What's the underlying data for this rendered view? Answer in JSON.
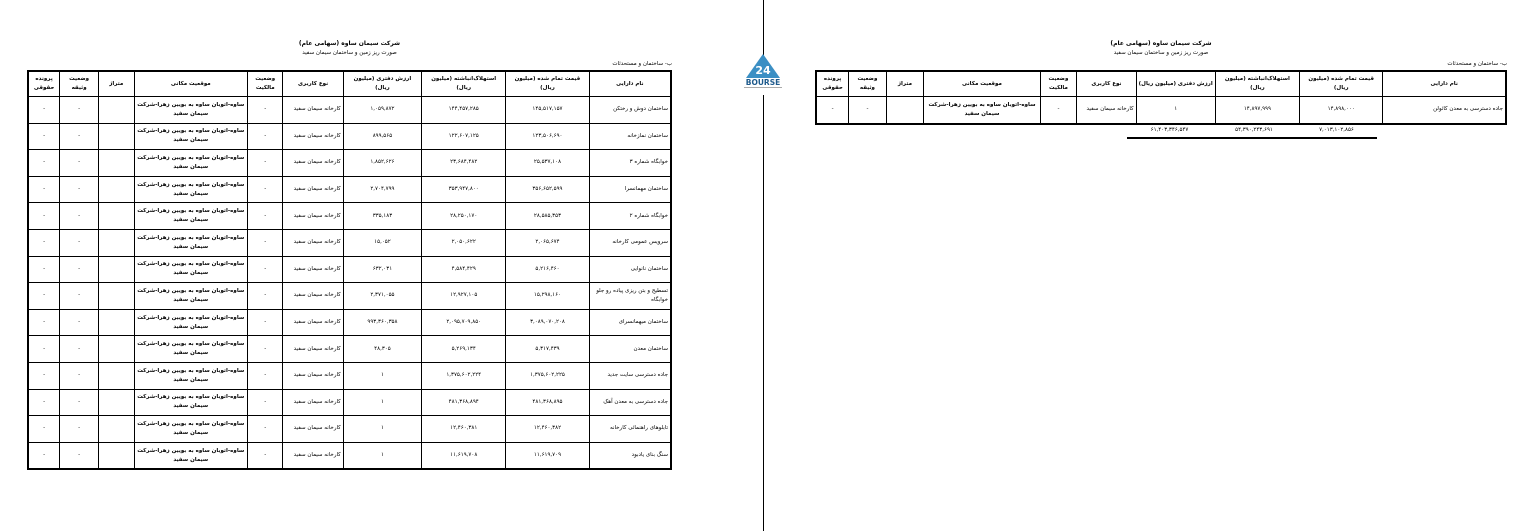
{
  "company": "شرکت سیمان ساوه (سهامی عام)",
  "subtitle": "صورت ریز زمین و ساختمان سیمان سفید",
  "section": "ب- ساختمان و مستحدثات",
  "logo_text": "BOURSE 24",
  "headers": [
    "نام دارایی",
    "قیمت تمام شده (میلیون ریال)",
    "استهلاک‌انباشته (میلیون ریال)",
    "ارزش دفتری (میلیون ریال)",
    "نوع کاربری",
    "وضعیت مالکیت",
    "موقعیت مکانی",
    "متراژ",
    "وضعیت وثیقه",
    "پرونده حقوقی"
  ],
  "left": {
    "rows": [
      {
        "name": "ساختمان دوش و رختکن",
        "cost": "۱۴۵,۵۱۷,۱۵۷",
        "dep": "۱۴۴,۴۵۷,۲۸۵",
        "book": "۱,۰۵۹,۸۷۲"
      },
      {
        "name": "ساختمان نمازخانه",
        "cost": "۱۲۳,۵۰۶,۶۹۰",
        "dep": "۱۲۲,۶۰۷,۱۲۵",
        "book": "۸۹۹,۵۶۵"
      },
      {
        "name": "خوابگاه شماره ۳",
        "cost": "۲۵,۵۳۷,۱۰۸",
        "dep": "۲۳,۶۸۴,۴۸۲",
        "book": "۱,۸۵۲,۶۲۶"
      },
      {
        "name": "ساختمان مهمانسرا",
        "cost": "۳۵۶,۶۵۲,۵۹۹",
        "dep": "۳۵۳,۹۴۷,۸۰۰",
        "book": "۲,۷۰۴,۷۹۹"
      },
      {
        "name": "خوابگاه شماره ۲",
        "cost": "۲۸,۵۸۵,۳۵۳",
        "dep": "۲۸,۲۵۰,۱۷۰",
        "book": "۳۳۵,۱۸۳"
      },
      {
        "name": "سرویس عمومی کارخانه",
        "cost": "۲,۰۶۵,۶۷۴",
        "dep": "۲,۰۵۰,۶۲۲",
        "book": "۱۵,۰۵۲"
      },
      {
        "name": "ساختمان نانوایی",
        "cost": "۵,۲۱۶,۴۶۰",
        "dep": "۴,۵۸۴,۴۲۹",
        "book": "۶۳۲,۰۳۱"
      },
      {
        "name": "تسطیح و بتن ریزی پیاده رو جلو خوابگاه",
        "cost": "۱۵,۲۹۸,۱۶۰",
        "dep": "۱۲,۹۲۷,۱۰۵",
        "book": "۲,۳۷۱,۰۵۵"
      },
      {
        "name": "ساختمان میهمانسرای",
        "cost": "۳,۰۸۹,۰۷۰,۲۰۸",
        "dep": "۲,۰۹۵,۷۰۹,۸۵۰",
        "book": "۹۹۳,۳۶۰,۳۵۸"
      },
      {
        "name": "ساختمان معدن",
        "cost": "۵,۳۱۷,۴۳۹",
        "dep": "۵,۲۶۹,۱۳۴",
        "book": "۴۸,۳۰۵"
      },
      {
        "name": "جاده دسترسی سایت جدید",
        "cost": "۱,۳۷۵,۶۰۲,۲۲۵",
        "dep": "۱,۳۷۵,۶۰۲,۲۲۴",
        "book": "۱"
      },
      {
        "name": "جاده دسترسی به معدن آهک",
        "cost": "۴۸۱,۳۶۸,۸۹۵",
        "dep": "۴۸۱,۳۶۸,۸۹۴",
        "book": "۱"
      },
      {
        "name": "تابلوهای راهنمائی کارخانه",
        "cost": "۱۲,۴۶۰,۳۸۲",
        "dep": "۱۲,۴۶۰,۳۸۱",
        "book": "۱"
      },
      {
        "name": "سنگ بنای یادبود",
        "cost": "۱۱,۶۱۹,۷۰۹",
        "dep": "۱۱,۶۱۹,۷۰۸",
        "book": "۱"
      }
    ]
  },
  "right": {
    "rows": [
      {
        "name": "جاده دسترسی به معدن کائولن",
        "cost": "۱۴,۸۹۸,۰۰۰",
        "dep": "۱۴,۸۹۷,۹۹۹",
        "book": "۱"
      }
    ],
    "totals": {
      "cost": "۶۱,۴۰۳,۳۴۶,۵۴۷",
      "dep": "۵۴,۳۹۰,۲۴۳,۶۹۱",
      "book": "۷,۰۱۳,۱۰۲,۸۵۶"
    }
  },
  "common": {
    "usage": "کارخانه سیمان سفید",
    "ownership": "-",
    "location": "ساوه-اتوبان ساوه به بویین زهرا-شرکت سیمان سفید",
    "area": "",
    "collateral": "-",
    "legal": "-"
  }
}
